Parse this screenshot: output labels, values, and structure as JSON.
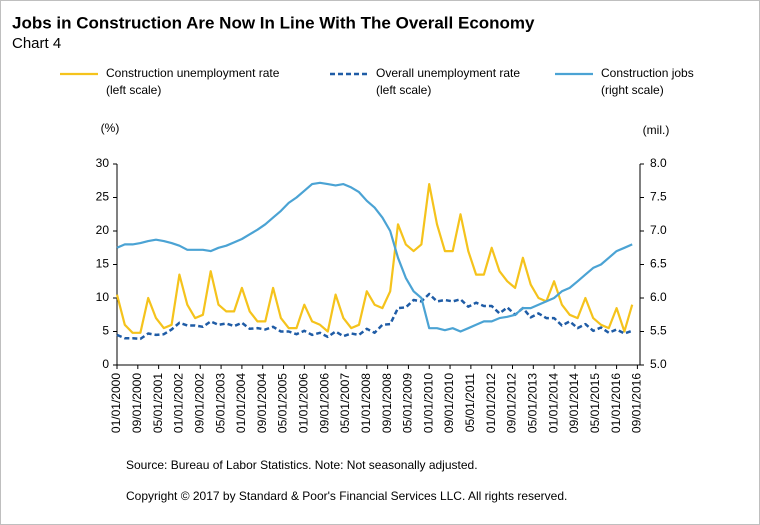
{
  "chart_data": {
    "type": "line",
    "title": "Jobs in Construction Are Now In Line With The Overall Economy",
    "subtitle": "Chart 4",
    "y_label": "(%)",
    "y2_label": "(mil.)",
    "source": "Source: Bureau of Labor Statistics. Note: Not seasonally adjusted.",
    "copyright": "Copyright © 2017 by Standard & Poor's Financial Services LLC. All rights reserved.",
    "x": [
      "01/01/2000",
      "04/01/2000",
      "07/01/2000",
      "10/01/2000",
      "01/01/2001",
      "04/01/2001",
      "07/01/2001",
      "10/01/2001",
      "01/01/2002",
      "04/01/2002",
      "07/01/2002",
      "10/01/2002",
      "01/01/2003",
      "04/01/2003",
      "07/01/2003",
      "10/01/2003",
      "01/01/2004",
      "04/01/2004",
      "07/01/2004",
      "10/01/2004",
      "01/01/2005",
      "04/01/2005",
      "07/01/2005",
      "10/01/2005",
      "01/01/2006",
      "04/01/2006",
      "07/01/2006",
      "10/01/2006",
      "01/01/2007",
      "04/01/2007",
      "07/01/2007",
      "10/01/2007",
      "01/01/2008",
      "04/01/2008",
      "07/01/2008",
      "10/01/2008",
      "01/01/2009",
      "04/01/2009",
      "07/01/2009",
      "10/01/2009",
      "01/01/2010",
      "04/01/2010",
      "07/01/2010",
      "10/01/2010",
      "01/01/2011",
      "04/01/2011",
      "07/01/2011",
      "10/01/2011",
      "01/01/2012",
      "04/01/2012",
      "07/01/2012",
      "10/01/2012",
      "01/01/2013",
      "04/01/2013",
      "07/01/2013",
      "10/01/2013",
      "01/01/2014",
      "04/01/2014",
      "07/01/2014",
      "10/01/2014",
      "01/01/2015",
      "04/01/2015",
      "07/01/2015",
      "10/01/2015",
      "01/01/2016",
      "04/01/2016",
      "07/01/2016"
    ],
    "series": [
      {
        "name": "Construction unemployment rate (left scale)",
        "color": "#f5c31c",
        "dash": false,
        "values": [
          10.5,
          6,
          4.8,
          4.8,
          10,
          7,
          5.5,
          6,
          13.5,
          9,
          7,
          7.5,
          14,
          9,
          8,
          8,
          11.5,
          8,
          6.5,
          6.5,
          11.5,
          7,
          5.5,
          5.5,
          9,
          6.5,
          6,
          5,
          10.5,
          7,
          5.5,
          6,
          11,
          9,
          8.5,
          11,
          21,
          18,
          17,
          18,
          27,
          21,
          17,
          17,
          22.5,
          17,
          13.5,
          13.5,
          17.5,
          14,
          12.5,
          11.5,
          16,
          12,
          10,
          9.5,
          12.5,
          9,
          7.5,
          7,
          10,
          7,
          6,
          5.5,
          8.5,
          5,
          9
        ]
      },
      {
        "name": "Overall unemployment rate (left scale)",
        "color": "#1f5ca6",
        "dash": true,
        "values": [
          4.5,
          4,
          4,
          3.9,
          4.7,
          4.5,
          4.6,
          5.3,
          6.3,
          5.9,
          5.9,
          5.7,
          6.5,
          6,
          6.2,
          5.8,
          6.3,
          5.4,
          5.5,
          5.3,
          5.7,
          5,
          5,
          4.6,
          5.1,
          4.5,
          4.8,
          4.2,
          5,
          4.3,
          4.7,
          4.5,
          5.4,
          4.8,
          6,
          6.1,
          8.5,
          8.6,
          9.7,
          9.5,
          10.6,
          9.5,
          9.7,
          9.5,
          9.8,
          8.7,
          9.3,
          8.8,
          8.8,
          7.7,
          8.6,
          7.5,
          8.5,
          7.1,
          7.7,
          7,
          7,
          5.9,
          6.5,
          5.5,
          6.1,
          5.1,
          5.6,
          4.8,
          5.3,
          4.7,
          5.1
        ]
      },
      {
        "name": "Construction jobs (right scale)",
        "color": "#4ba3d4",
        "dash": false,
        "axis": "y2",
        "values": [
          6.75,
          6.8,
          6.8,
          6.82,
          6.85,
          6.87,
          6.85,
          6.82,
          6.78,
          6.72,
          6.72,
          6.72,
          6.7,
          6.75,
          6.78,
          6.83,
          6.88,
          6.95,
          7.02,
          7.1,
          7.2,
          7.3,
          7.42,
          7.5,
          7.6,
          7.7,
          7.72,
          7.7,
          7.68,
          7.7,
          7.65,
          7.58,
          7.45,
          7.35,
          7.2,
          7.0,
          6.6,
          6.3,
          6.1,
          6.0,
          5.55,
          5.55,
          5.52,
          5.55,
          5.5,
          5.55,
          5.6,
          5.65,
          5.65,
          5.7,
          5.72,
          5.75,
          5.85,
          5.85,
          5.9,
          5.95,
          6.0,
          6.1,
          6.15,
          6.25,
          6.35,
          6.45,
          6.5,
          6.6,
          6.7,
          6.75,
          6.8
        ]
      }
    ],
    "xlim": [
      "01/01/2000",
      "10/01/2016"
    ],
    "xticks": [
      "01/01/2000",
      "09/01/2000",
      "05/01/2001",
      "01/01/2002",
      "09/01/2002",
      "05/01/2003",
      "01/01/2004",
      "09/01/2004",
      "05/01/2005",
      "01/01/2006",
      "09/01/2006",
      "05/01/2007",
      "01/01/2008",
      "09/01/2008",
      "05/01/2009",
      "01/01/2010",
      "09/01/2010",
      "05/01/2011",
      "01/01/2012",
      "09/01/2012",
      "05/01/2013",
      "01/01/2014",
      "09/01/2014",
      "05/01/2015",
      "01/01/2016",
      "09/01/2016"
    ],
    "ylim": [
      0,
      30
    ],
    "yticks": [
      0,
      5,
      10,
      15,
      20,
      25,
      30
    ],
    "y2lim": [
      5,
      8
    ],
    "y2ticks": [
      {
        "value": 5,
        "label": "5.0"
      },
      {
        "value": 5.5,
        "label": "5.5"
      },
      {
        "value": 6,
        "label": "6.0"
      },
      {
        "value": 6.5,
        "label": "6.5"
      },
      {
        "value": 7,
        "label": "7.0"
      },
      {
        "value": 7.5,
        "label": "7.5"
      },
      {
        "value": 8,
        "label": "8.0"
      }
    ],
    "grid": false
  }
}
